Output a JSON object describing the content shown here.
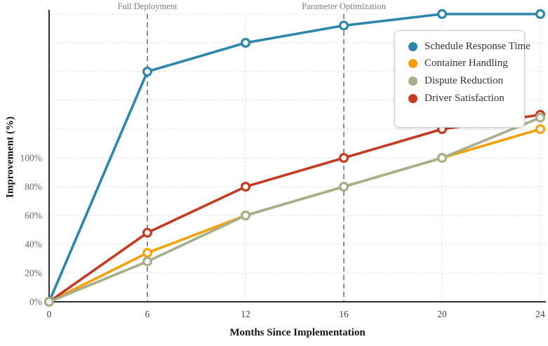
{
  "chart_data": {
    "type": "line",
    "xlabel": "Months Since Implementation",
    "ylabel": "Improvement (%)",
    "x_values": [
      0,
      6,
      12,
      16,
      20,
      24
    ],
    "x_tick_labels": [
      "0",
      "6",
      "12",
      "16",
      "20",
      "24"
    ],
    "y_tick_values": [
      0,
      20,
      40,
      60,
      80,
      100
    ],
    "y_tick_labels": [
      "0%",
      "20%",
      "40%",
      "60%",
      "80%",
      "100%"
    ],
    "ylim": [
      0,
      200
    ],
    "y_grid_step": 20,
    "grid": true,
    "legend_position": "upper-right",
    "axis_color": "#303030",
    "grid_color": "#d6d6d6",
    "annotation_line_color": "#8f8f8f",
    "series": [
      {
        "name": "Schedule Response Time",
        "color": "#2E86AB",
        "values": [
          0,
          160,
          180,
          192,
          200,
          200
        ]
      },
      {
        "name": "Container Handling",
        "color": "#F6A006",
        "values": [
          0,
          34,
          60,
          80,
          100,
          120
        ]
      },
      {
        "name": "Driver Satisfaction",
        "color": "#C53B22",
        "values": [
          0,
          48,
          80,
          100,
          120,
          130
        ]
      },
      {
        "name": "Dispute Reduction",
        "color": "#A8AE8A",
        "values": [
          0,
          28,
          60,
          80,
          100,
          128
        ]
      }
    ],
    "legend_order": [
      0,
      1,
      3,
      2
    ],
    "annotations": [
      {
        "label": "Full Deployment",
        "month": 6,
        "x_index": 1
      },
      {
        "label": "Parameter Optimization",
        "month": 16,
        "x_index": 3
      }
    ]
  }
}
